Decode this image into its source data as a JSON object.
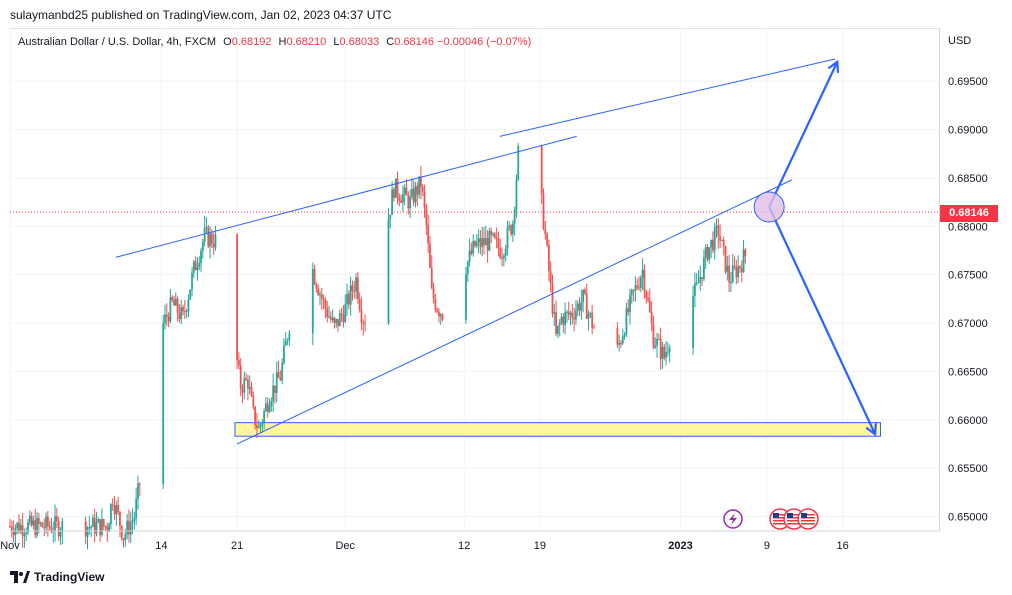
{
  "header": {
    "publisher": "sulaymanbd25 published on TradingView.com, Jan 02, 2023 04:37 UTC"
  },
  "legend": {
    "symbol": "Australian Dollar / U.S. Dollar, 4h, FXCM",
    "open_label": "O",
    "open": "0.68192",
    "high_label": "H",
    "high": "0.68210",
    "low_label": "L",
    "low": "0.68033",
    "close_label": "C",
    "close": "0.68146",
    "change": "−0.00046 (−0.07%)"
  },
  "currency": "USD",
  "current_price": "0.68146",
  "footer": {
    "brand": "TradingView",
    "logo_icon": "tradingview-logo-icon"
  },
  "colors": {
    "up": "#26a69a",
    "down": "#ef5350",
    "trend": "#2962ff",
    "zone_fill": "#fff59d",
    "circle_fill": "#e1bee7",
    "price_tag": "#f23645"
  },
  "chart_data": {
    "type": "candlestick",
    "symbol": "AUDUSD",
    "interval": "4h",
    "currency": "USD",
    "y_ticks": [
      0.695,
      0.69,
      0.685,
      0.68,
      0.675,
      0.67,
      0.665,
      0.66,
      0.655,
      0.65
    ],
    "y_tick_labels": [
      "0.69500",
      "0.69000",
      "0.68500",
      "0.68000",
      "0.67500",
      "0.67000",
      "0.66500",
      "0.66000",
      "0.65500",
      "0.65000"
    ],
    "ylim": [
      0.6485,
      0.7005
    ],
    "x_ticks": [
      "Nov",
      "14",
      "21",
      "Dec",
      "12",
      "19",
      "2023",
      "9",
      "16"
    ],
    "x_tick_days": [
      0,
      14,
      21,
      31,
      42,
      49,
      62,
      70,
      77
    ],
    "x_unit": "days since Nov 1, 2022",
    "xlim": [
      0,
      86
    ],
    "last_price": 0.68146,
    "price_path": [
      [
        0,
        0.649
      ],
      [
        9,
        0.649
      ],
      [
        9.5,
        0.652
      ],
      [
        10.5,
        0.648
      ],
      [
        11.5,
        0.65
      ],
      [
        12.5,
        0.657
      ],
      [
        13.2,
        0.666
      ],
      [
        14.2,
        0.67
      ],
      [
        15,
        0.672
      ],
      [
        16,
        0.6705
      ],
      [
        17,
        0.6755
      ],
      [
        18,
        0.679
      ],
      [
        19,
        0.6785
      ],
      [
        20,
        0.67
      ],
      [
        20.7,
        0.6685
      ],
      [
        21.3,
        0.6635
      ],
      [
        22,
        0.664
      ],
      [
        22.5,
        0.6605
      ],
      [
        23,
        0.659
      ],
      [
        24,
        0.6625
      ],
      [
        25,
        0.6645
      ],
      [
        26,
        0.671
      ],
      [
        27,
        0.676
      ],
      [
        28,
        0.6755
      ],
      [
        29,
        0.672
      ],
      [
        30,
        0.6695
      ],
      [
        31,
        0.6715
      ],
      [
        32,
        0.6745
      ],
      [
        32.6,
        0.6705
      ],
      [
        33.5,
        0.6705
      ],
      [
        34.5,
        0.678
      ],
      [
        35.5,
        0.684
      ],
      [
        36,
        0.6835
      ],
      [
        37,
        0.6825
      ],
      [
        38,
        0.6845
      ],
      [
        38.5,
        0.68
      ],
      [
        39,
        0.673
      ],
      [
        39.6,
        0.6715
      ],
      [
        40.5,
        0.6705
      ],
      [
        41,
        0.6735
      ],
      [
        42,
        0.6755
      ],
      [
        43,
        0.678
      ],
      [
        44.5,
        0.6785
      ],
      [
        45.5,
        0.6775
      ],
      [
        46.5,
        0.6805
      ],
      [
        47,
        0.6875
      ],
      [
        47.5,
        0.6885
      ],
      [
        48,
        0.6875
      ],
      [
        48.5,
        0.686
      ],
      [
        49,
        0.684
      ],
      [
        49.5,
        0.679
      ],
      [
        50,
        0.6735
      ],
      [
        50.5,
        0.6685
      ],
      [
        51,
        0.6705
      ],
      [
        52,
        0.671
      ],
      [
        53,
        0.6725
      ],
      [
        54,
        0.6695
      ],
      [
        55,
        0.666
      ],
      [
        55.5,
        0.6645
      ],
      [
        56.5,
        0.6685
      ],
      [
        57.5,
        0.6725
      ],
      [
        58.5,
        0.6755
      ],
      [
        59.5,
        0.6685
      ],
      [
        60.5,
        0.6665
      ],
      [
        61.5,
        0.6705
      ],
      [
        62.5,
        0.6715
      ],
      [
        63.5,
        0.6735
      ],
      [
        64.5,
        0.6775
      ],
      [
        65.5,
        0.6795
      ],
      [
        66.5,
        0.6745
      ],
      [
        67.5,
        0.676
      ],
      [
        68.5,
        0.678
      ],
      [
        69.2,
        0.6805
      ],
      [
        69.8,
        0.68146
      ]
    ],
    "drawings": {
      "upper_channel_line": [
        [
          9.8,
          0.6768
        ],
        [
          52.4,
          0.6893
        ]
      ],
      "lower_channel_line": [
        [
          21,
          0.6575
        ],
        [
          72.3,
          0.6848
        ]
      ],
      "breakout_circle": {
        "center": [
          70.2,
          0.682
        ]
      },
      "up_arrow": [
        [
          70.2,
          0.682
        ],
        [
          76.5,
          0.697
        ]
      ],
      "up_line": [
        [
          45.3,
          0.6893
        ],
        [
          76.3,
          0.6973
        ]
      ],
      "down_arrow": [
        [
          70.2,
          0.682
        ],
        [
          80,
          0.6585
        ]
      ],
      "support_zone": {
        "x": [
          20.8,
          80.5
        ],
        "y": [
          0.6583,
          0.6597
        ]
      }
    },
    "event_icons": [
      "lightning-event-icon",
      "us-flag-event-icon",
      "us-flag-event-icon",
      "us-flag-event-icon"
    ]
  }
}
